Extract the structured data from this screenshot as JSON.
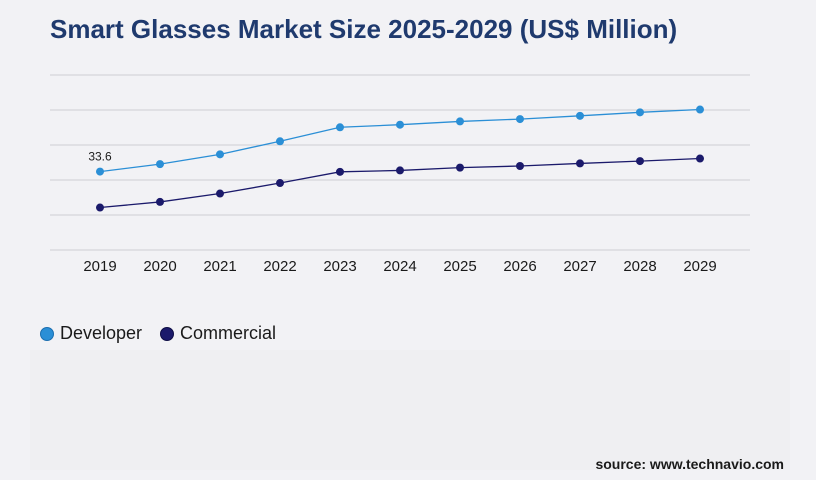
{
  "title": "Smart Glasses Market Size 2025-2029 (US$ Million)",
  "source": "source: www.technavio.com",
  "chart_data": {
    "type": "line",
    "title": "Smart Glasses Market Size 2025-2029 (US$ Million)",
    "categories": [
      "2019",
      "2020",
      "2021",
      "2022",
      "2023",
      "2024",
      "2025",
      "2026",
      "2027",
      "2028",
      "2029"
    ],
    "series": [
      {
        "name": "Developer",
        "color": "#2b8fd6",
        "values": [
          33.6,
          36.8,
          41.0,
          46.6,
          52.6,
          53.7,
          55.1,
          56.1,
          57.5,
          59.0,
          60.2
        ]
      },
      {
        "name": "Commercial",
        "color": "#1b1a6b",
        "values": [
          18.2,
          20.6,
          24.2,
          28.7,
          33.5,
          34.1,
          35.3,
          36.0,
          37.1,
          38.1,
          39.2
        ]
      }
    ],
    "first_point_label": "33.6",
    "ylim": [
      0,
      75
    ],
    "grid": true,
    "legend_position": "bottom-left"
  }
}
